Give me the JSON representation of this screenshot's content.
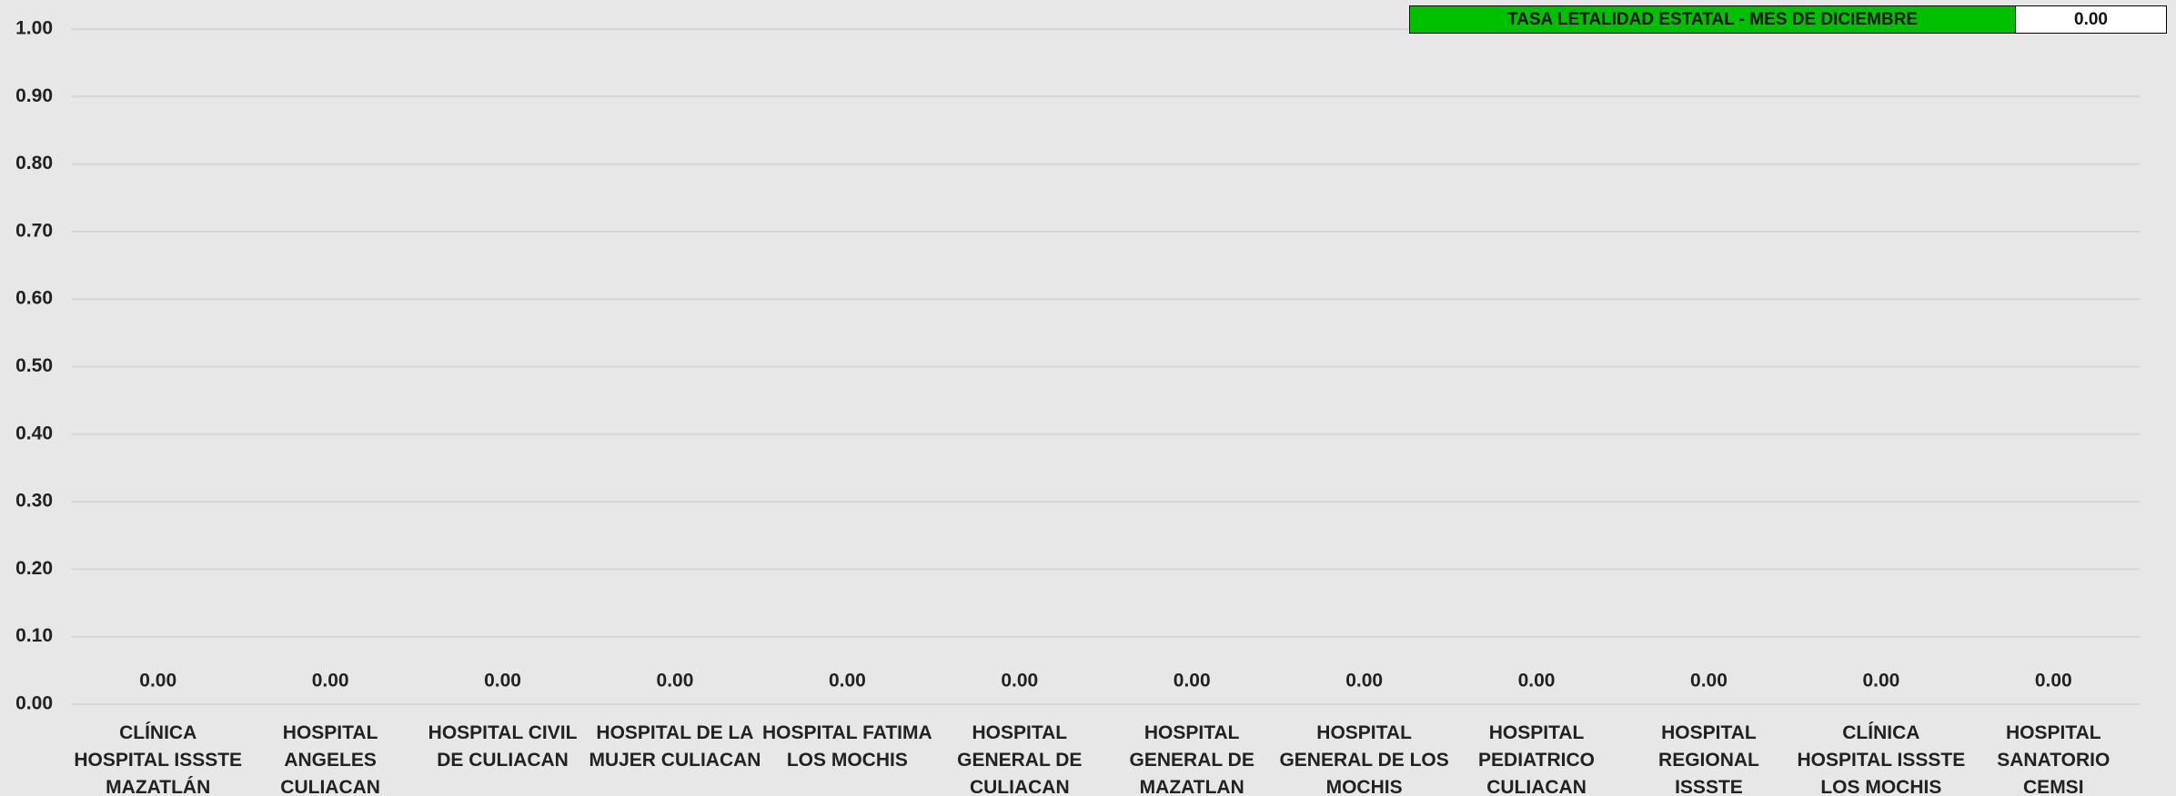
{
  "chart_data": {
    "type": "bar",
    "categories": [
      "CLÍNICA HOSPITAL ISSSTE MAZATLÁN",
      "HOSPITAL ANGELES CULIACAN",
      "HOSPITAL CIVIL DE CULIACAN",
      "HOSPITAL DE LA MUJER CULIACAN",
      "HOSPITAL FATIMA LOS MOCHIS",
      "HOSPITAL GENERAL DE CULIACAN",
      "HOSPITAL GENERAL DE MAZATLAN",
      "HOSPITAL GENERAL DE LOS MOCHIS",
      "HOSPITAL PEDIATRICO CULIACAN",
      "HOSPITAL REGIONAL ISSSTE CULIACAN",
      "CLÍNICA HOSPITAL ISSSTE LOS MOCHIS",
      "HOSPITAL SANATORIO CEMSI CHAPULTEPEC"
    ],
    "values": [
      0,
      0,
      0,
      0,
      0,
      0,
      0,
      0,
      0,
      0,
      0,
      0
    ],
    "value_labels": [
      "0.00",
      "0.00",
      "0.00",
      "0.00",
      "0.00",
      "0.00",
      "0.00",
      "0.00",
      "0.00",
      "0.00",
      "0.00",
      "0.00"
    ],
    "color": "#4472c4",
    "ylim": [
      0,
      1
    ],
    "yticks": [
      {
        "value": 0,
        "label": "0.00"
      },
      {
        "value": 0.1,
        "label": "0.10"
      },
      {
        "value": 0.2,
        "label": "0.20"
      },
      {
        "value": 0.3,
        "label": "0.30"
      },
      {
        "value": 0.4,
        "label": "0.40"
      },
      {
        "value": 0.5,
        "label": "0.50"
      },
      {
        "value": 0.6,
        "label": "0.60"
      },
      {
        "value": 0.7,
        "label": "0.70"
      },
      {
        "value": 0.8,
        "label": "0.80"
      },
      {
        "value": 0.9,
        "label": "0.90"
      },
      {
        "value": 1,
        "label": "1.00"
      }
    ],
    "grid": true,
    "annotation": {
      "text": "TASA LETALIDAD ESTATAL - MES DE DICIEMBRE",
      "value": "0.00"
    }
  }
}
